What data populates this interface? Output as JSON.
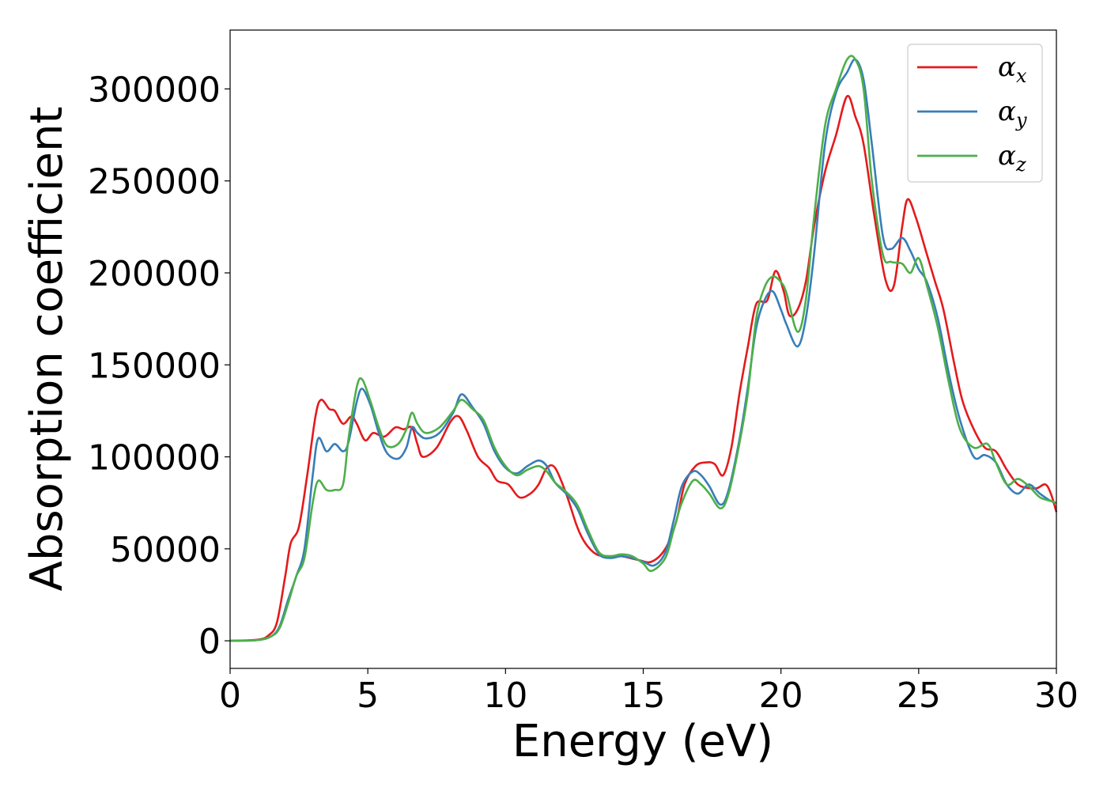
{
  "chart_data": {
    "type": "line",
    "title": "",
    "xlabel": "Energy (eV)",
    "ylabel": "Absorption coefficient",
    "xlim": [
      0,
      30
    ],
    "ylim": [
      -15000,
      332000
    ],
    "xticks": [
      0,
      5,
      10,
      15,
      20,
      25,
      30
    ],
    "yticks": [
      0,
      50000,
      100000,
      150000,
      200000,
      250000,
      300000
    ],
    "grid": false,
    "legend_position": "top-right",
    "series": [
      {
        "name": "αx",
        "symbol": "α",
        "subscript": "x",
        "color": "#e41a1c",
        "points": [
          [
            0,
            0
          ],
          [
            1,
            600
          ],
          [
            1.4,
            3000
          ],
          [
            1.7,
            10000
          ],
          [
            2,
            35000
          ],
          [
            2.2,
            53000
          ],
          [
            2.5,
            62000
          ],
          [
            2.8,
            90000
          ],
          [
            3.1,
            122000
          ],
          [
            3.3,
            131000
          ],
          [
            3.6,
            126000
          ],
          [
            3.8,
            125000
          ],
          [
            4.1,
            118000
          ],
          [
            4.4,
            122000
          ],
          [
            4.6,
            118000
          ],
          [
            4.9,
            109000
          ],
          [
            5.2,
            113000
          ],
          [
            5.6,
            111000
          ],
          [
            6,
            116000
          ],
          [
            6.3,
            115000
          ],
          [
            6.6,
            116000
          ],
          [
            6.8,
            107000
          ],
          [
            7,
            100000
          ],
          [
            7.5,
            105000
          ],
          [
            8,
            119000
          ],
          [
            8.3,
            122000
          ],
          [
            8.6,
            114000
          ],
          [
            9,
            100000
          ],
          [
            9.4,
            94000
          ],
          [
            9.7,
            87000
          ],
          [
            10.1,
            85000
          ],
          [
            10.5,
            78000
          ],
          [
            10.9,
            80000
          ],
          [
            11.2,
            85000
          ],
          [
            11.5,
            94000
          ],
          [
            11.8,
            94000
          ],
          [
            12.2,
            80000
          ],
          [
            12.6,
            62000
          ],
          [
            12.9,
            53000
          ],
          [
            13.3,
            47000
          ],
          [
            13.7,
            46000
          ],
          [
            14.2,
            46000
          ],
          [
            14.8,
            44000
          ],
          [
            15.3,
            43000
          ],
          [
            15.8,
            50000
          ],
          [
            16.2,
            65000
          ],
          [
            16.5,
            85000
          ],
          [
            16.9,
            95000
          ],
          [
            17.3,
            97000
          ],
          [
            17.6,
            96000
          ],
          [
            17.9,
            90000
          ],
          [
            18.2,
            105000
          ],
          [
            18.5,
            135000
          ],
          [
            18.8,
            160000
          ],
          [
            19.1,
            183000
          ],
          [
            19.5,
            185000
          ],
          [
            19.8,
            201000
          ],
          [
            20.1,
            190000
          ],
          [
            20.3,
            177000
          ],
          [
            20.6,
            180000
          ],
          [
            20.9,
            195000
          ],
          [
            21.2,
            225000
          ],
          [
            21.6,
            255000
          ],
          [
            22,
            275000
          ],
          [
            22.4,
            296000
          ],
          [
            22.7,
            285000
          ],
          [
            23,
            270000
          ],
          [
            23.4,
            230000
          ],
          [
            23.8,
            196000
          ],
          [
            24.1,
            193000
          ],
          [
            24.4,
            225000
          ],
          [
            24.6,
            240000
          ],
          [
            24.9,
            230000
          ],
          [
            25.3,
            210000
          ],
          [
            25.6,
            195000
          ],
          [
            25.9,
            180000
          ],
          [
            26.3,
            150000
          ],
          [
            26.6,
            130000
          ],
          [
            27,
            115000
          ],
          [
            27.4,
            105000
          ],
          [
            27.8,
            103000
          ],
          [
            28.2,
            93000
          ],
          [
            28.6,
            85000
          ],
          [
            29,
            83000
          ],
          [
            29.3,
            83000
          ],
          [
            29.6,
            85000
          ],
          [
            29.8,
            80000
          ],
          [
            30,
            70000
          ]
        ]
      },
      {
        "name": "αy",
        "symbol": "α",
        "subscript": "y",
        "color": "#377eb8",
        "points": [
          [
            0,
            0
          ],
          [
            1,
            400
          ],
          [
            1.5,
            2500
          ],
          [
            1.8,
            8000
          ],
          [
            2.1,
            22000
          ],
          [
            2.4,
            35000
          ],
          [
            2.7,
            50000
          ],
          [
            3,
            90000
          ],
          [
            3.2,
            110000
          ],
          [
            3.5,
            103000
          ],
          [
            3.8,
            107000
          ],
          [
            4.1,
            103000
          ],
          [
            4.3,
            108000
          ],
          [
            4.6,
            130000
          ],
          [
            4.8,
            137000
          ],
          [
            5.1,
            128000
          ],
          [
            5.4,
            113000
          ],
          [
            5.7,
            102000
          ],
          [
            6.1,
            99000
          ],
          [
            6.4,
            105000
          ],
          [
            6.6,
            116000
          ],
          [
            6.8,
            113000
          ],
          [
            7.1,
            110000
          ],
          [
            7.6,
            113000
          ],
          [
            8.1,
            124000
          ],
          [
            8.4,
            134000
          ],
          [
            8.8,
            127000
          ],
          [
            9.2,
            118000
          ],
          [
            9.6,
            103000
          ],
          [
            10,
            94000
          ],
          [
            10.4,
            91000
          ],
          [
            10.8,
            95000
          ],
          [
            11.2,
            98000
          ],
          [
            11.5,
            95000
          ],
          [
            11.8,
            86000
          ],
          [
            12.2,
            80000
          ],
          [
            12.6,
            72000
          ],
          [
            13,
            58000
          ],
          [
            13.4,
            47000
          ],
          [
            13.8,
            45000
          ],
          [
            14.2,
            46000
          ],
          [
            14.6,
            45000
          ],
          [
            15,
            43000
          ],
          [
            15.4,
            41000
          ],
          [
            15.8,
            48000
          ],
          [
            16.1,
            65000
          ],
          [
            16.4,
            84000
          ],
          [
            16.8,
            92000
          ],
          [
            17.1,
            90000
          ],
          [
            17.4,
            84000
          ],
          [
            17.8,
            74000
          ],
          [
            18.1,
            82000
          ],
          [
            18.5,
            110000
          ],
          [
            18.8,
            138000
          ],
          [
            19.1,
            170000
          ],
          [
            19.4,
            185000
          ],
          [
            19.7,
            190000
          ],
          [
            20,
            180000
          ],
          [
            20.2,
            172000
          ],
          [
            20.6,
            160000
          ],
          [
            20.9,
            175000
          ],
          [
            21.2,
            210000
          ],
          [
            21.6,
            270000
          ],
          [
            22,
            298000
          ],
          [
            22.4,
            309000
          ],
          [
            22.7,
            316000
          ],
          [
            23,
            305000
          ],
          [
            23.3,
            270000
          ],
          [
            23.7,
            220000
          ],
          [
            24,
            213000
          ],
          [
            24.4,
            219000
          ],
          [
            24.7,
            212000
          ],
          [
            25,
            202000
          ],
          [
            25.3,
            195000
          ],
          [
            25.7,
            175000
          ],
          [
            26.1,
            145000
          ],
          [
            26.5,
            120000
          ],
          [
            27,
            100000
          ],
          [
            27.4,
            101000
          ],
          [
            27.8,
            97000
          ],
          [
            28.2,
            85000
          ],
          [
            28.6,
            80000
          ],
          [
            29,
            85000
          ],
          [
            29.4,
            80000
          ],
          [
            29.8,
            76000
          ],
          [
            30,
            75000
          ]
        ]
      },
      {
        "name": "αz",
        "symbol": "α",
        "subscript": "z",
        "color": "#4daf4a",
        "points": [
          [
            0,
            0
          ],
          [
            1,
            400
          ],
          [
            1.5,
            2500
          ],
          [
            1.8,
            7000
          ],
          [
            2.1,
            20000
          ],
          [
            2.4,
            35000
          ],
          [
            2.7,
            45000
          ],
          [
            3,
            75000
          ],
          [
            3.2,
            87000
          ],
          [
            3.5,
            82000
          ],
          [
            3.8,
            82000
          ],
          [
            4.1,
            85000
          ],
          [
            4.3,
            110000
          ],
          [
            4.6,
            138000
          ],
          [
            4.8,
            142000
          ],
          [
            5.1,
            130000
          ],
          [
            5.4,
            116000
          ],
          [
            5.7,
            106000
          ],
          [
            6.1,
            107000
          ],
          [
            6.4,
            115000
          ],
          [
            6.6,
            124000
          ],
          [
            6.8,
            118000
          ],
          [
            7.1,
            113000
          ],
          [
            7.6,
            116000
          ],
          [
            8.1,
            125000
          ],
          [
            8.4,
            131000
          ],
          [
            8.8,
            126000
          ],
          [
            9.2,
            120000
          ],
          [
            9.6,
            105000
          ],
          [
            10,
            95000
          ],
          [
            10.4,
            90000
          ],
          [
            10.8,
            93000
          ],
          [
            11.2,
            95000
          ],
          [
            11.5,
            92000
          ],
          [
            11.8,
            86000
          ],
          [
            12.2,
            81000
          ],
          [
            12.6,
            74000
          ],
          [
            13,
            60000
          ],
          [
            13.4,
            48000
          ],
          [
            13.8,
            46000
          ],
          [
            14.2,
            47000
          ],
          [
            14.6,
            46000
          ],
          [
            15,
            42000
          ],
          [
            15.3,
            38000
          ],
          [
            15.8,
            45000
          ],
          [
            16.1,
            60000
          ],
          [
            16.4,
            75000
          ],
          [
            16.8,
            87000
          ],
          [
            17.1,
            85000
          ],
          [
            17.4,
            80000
          ],
          [
            17.8,
            72000
          ],
          [
            18.1,
            80000
          ],
          [
            18.5,
            108000
          ],
          [
            18.8,
            135000
          ],
          [
            19.1,
            175000
          ],
          [
            19.4,
            192000
          ],
          [
            19.7,
            198000
          ],
          [
            20,
            195000
          ],
          [
            20.2,
            189000
          ],
          [
            20.6,
            168000
          ],
          [
            20.9,
            185000
          ],
          [
            21.2,
            230000
          ],
          [
            21.6,
            280000
          ],
          [
            22,
            300000
          ],
          [
            22.4,
            316000
          ],
          [
            22.7,
            316000
          ],
          [
            23,
            300000
          ],
          [
            23.3,
            250000
          ],
          [
            23.7,
            210000
          ],
          [
            24,
            206000
          ],
          [
            24.4,
            205000
          ],
          [
            24.7,
            200000
          ],
          [
            25,
            208000
          ],
          [
            25.3,
            193000
          ],
          [
            25.7,
            170000
          ],
          [
            26.1,
            140000
          ],
          [
            26.5,
            115000
          ],
          [
            27,
            105000
          ],
          [
            27.5,
            107000
          ],
          [
            27.8,
            97000
          ],
          [
            28.2,
            85000
          ],
          [
            28.6,
            88000
          ],
          [
            29,
            84000
          ],
          [
            29.4,
            78000
          ],
          [
            29.8,
            76000
          ],
          [
            30,
            75000
          ]
        ]
      }
    ]
  }
}
